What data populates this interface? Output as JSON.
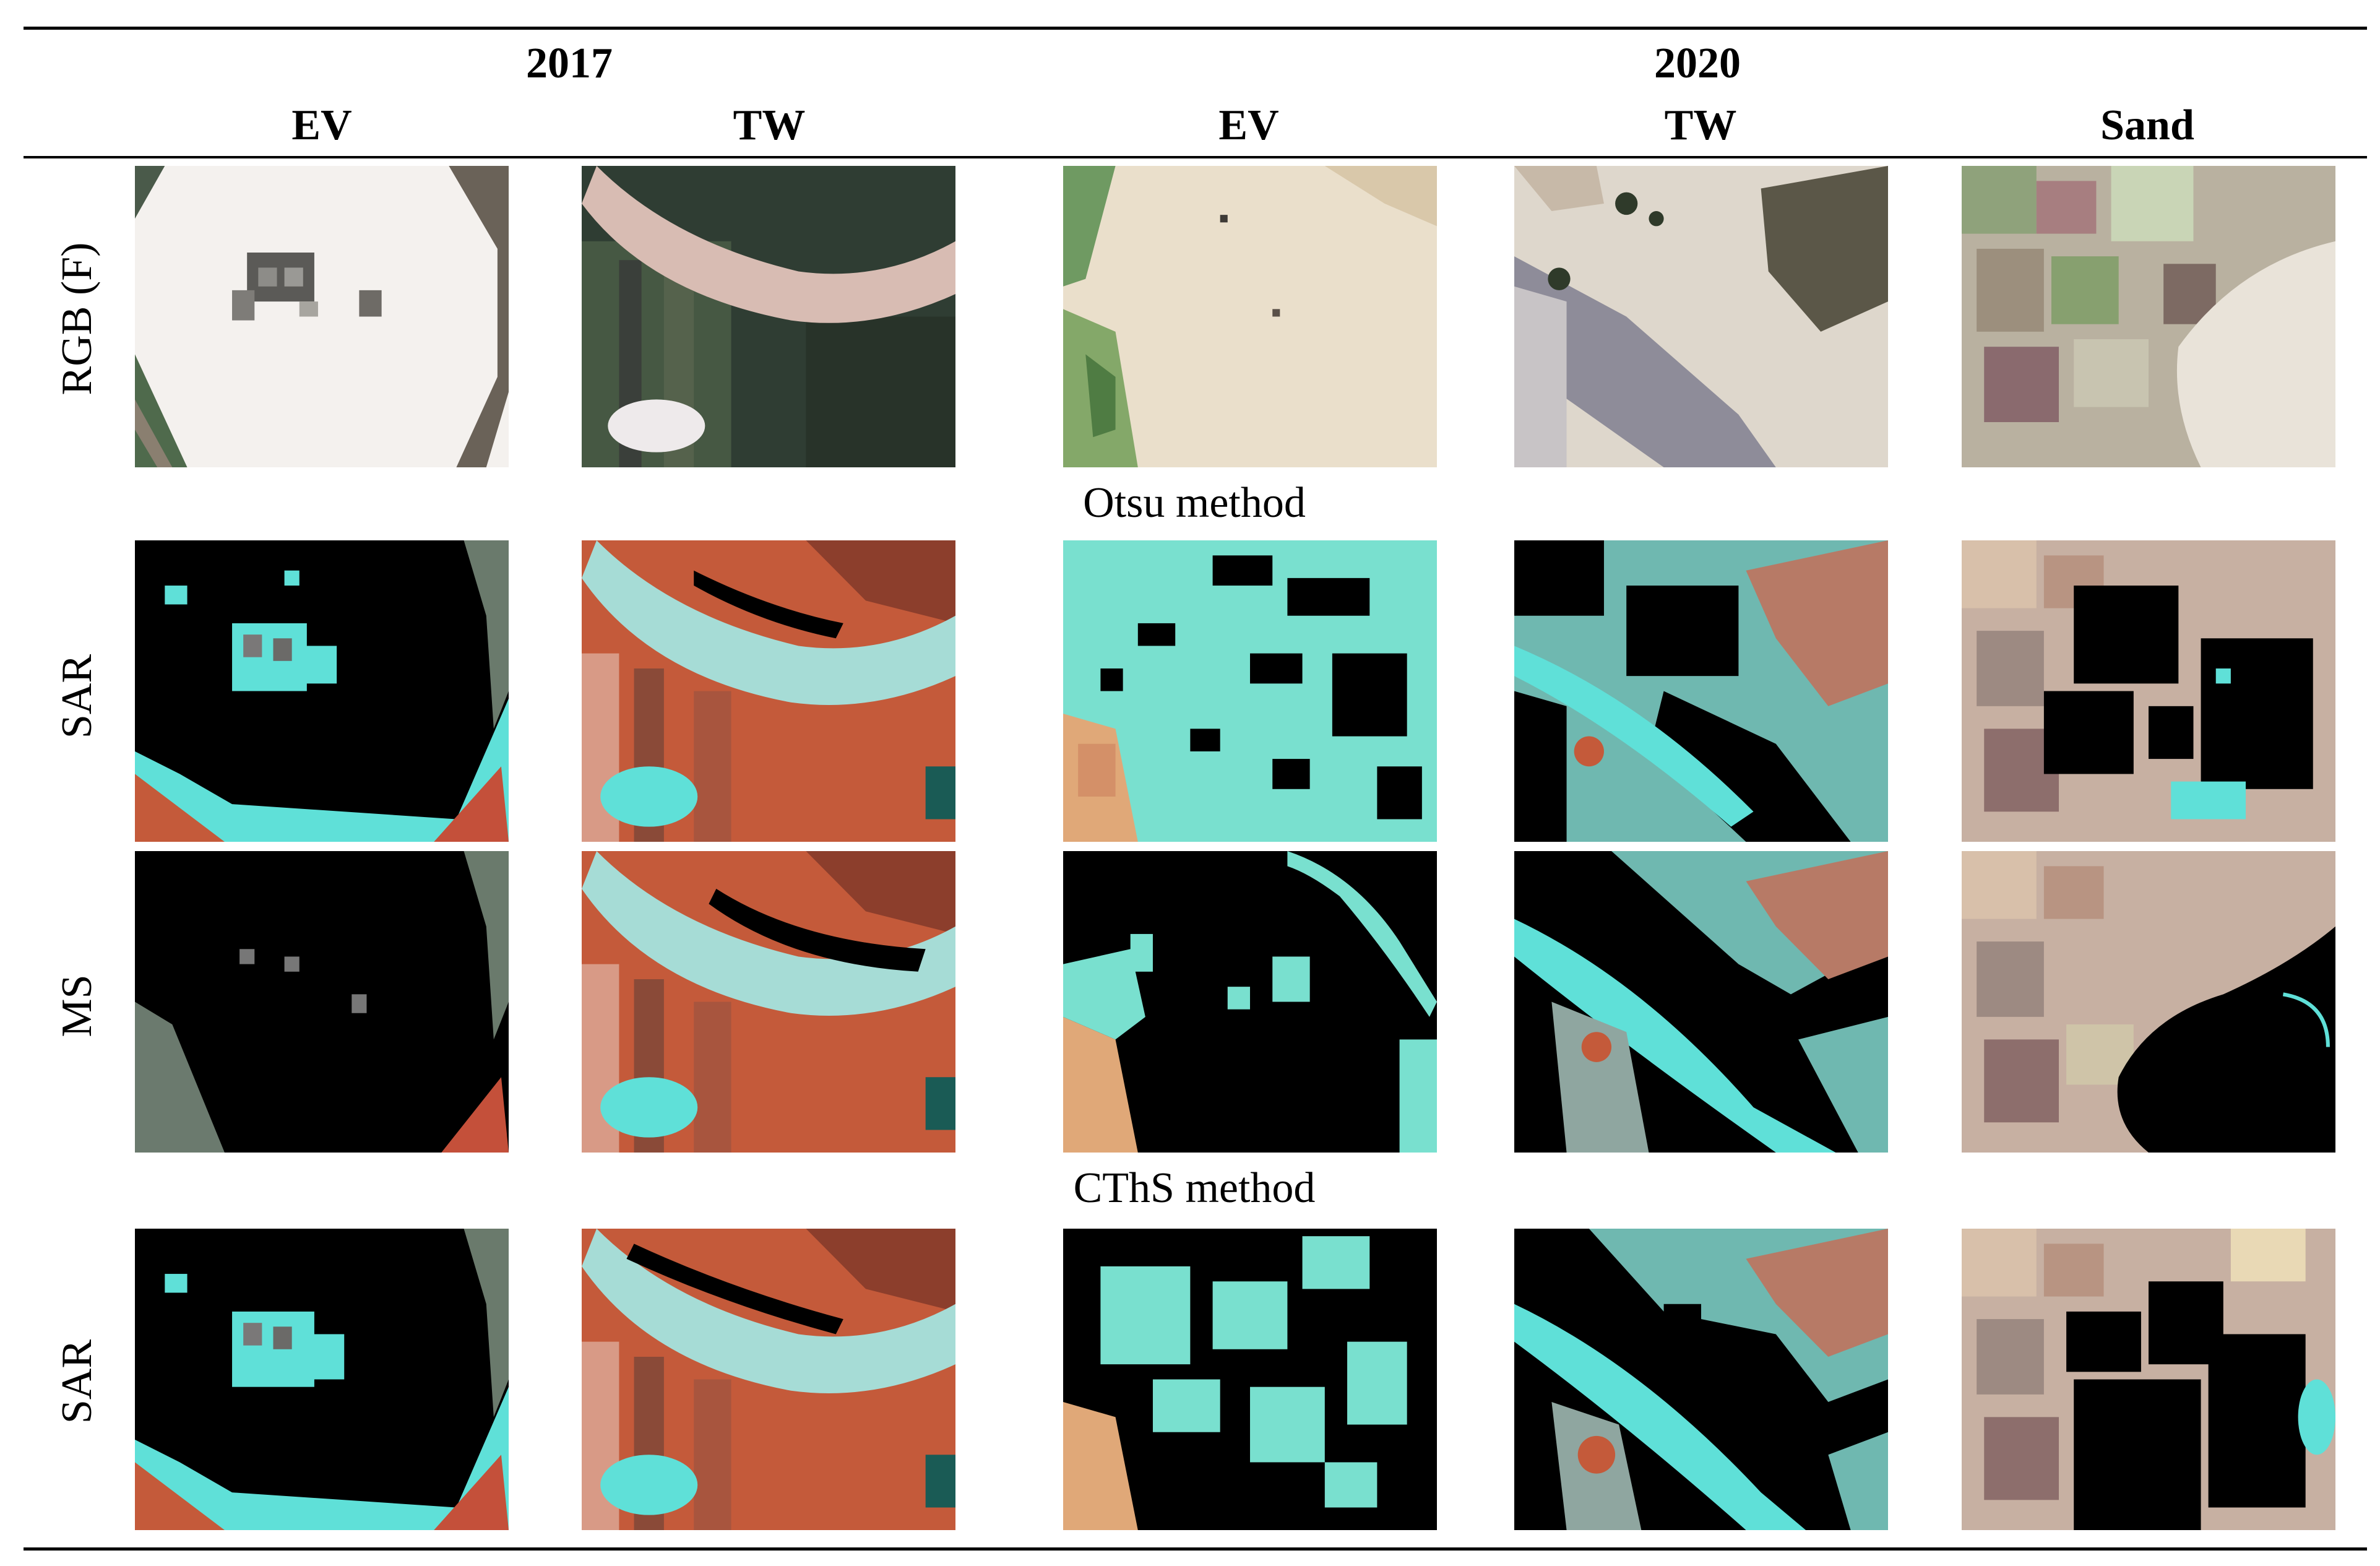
{
  "years": [
    "2017",
    "2020"
  ],
  "columns": [
    "EV",
    "TW",
    "EV",
    "TW",
    "Sand"
  ],
  "rows": [
    "RGB (F)",
    "SAR",
    "MS",
    "SAR"
  ],
  "methods": [
    "Otsu method",
    "CThS method"
  ],
  "colors": {
    "water": "#5fe0d8",
    "water_dark": "#3fbdb8",
    "soil_red": "#c45a3a",
    "soil_pink": "#d89a86",
    "veg_dark": "#3a4a3c",
    "sand_light": "#f0e8df",
    "masked": "#000000"
  }
}
